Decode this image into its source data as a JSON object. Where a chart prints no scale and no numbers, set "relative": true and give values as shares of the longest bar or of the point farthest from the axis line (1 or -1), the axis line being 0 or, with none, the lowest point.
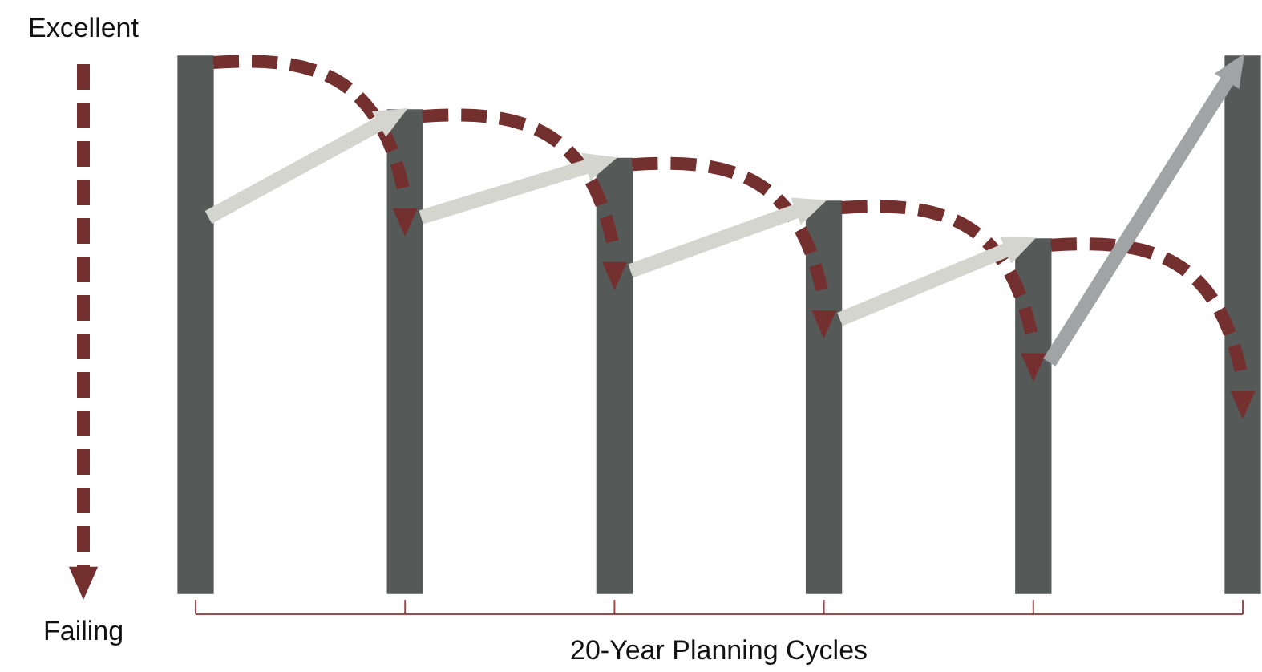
{
  "chart_data": {
    "type": "bar",
    "relative": true,
    "categories": [
      null,
      null,
      null,
      null,
      null,
      null
    ],
    "values": [
      1,
      0.9,
      0.81,
      0.73,
      0.66,
      1
    ],
    "color": "#555a59",
    "xlabel": "20-Year Planning Cycles",
    "annotations": [
      "Excellent",
      "Failing"
    ]
  }
}
